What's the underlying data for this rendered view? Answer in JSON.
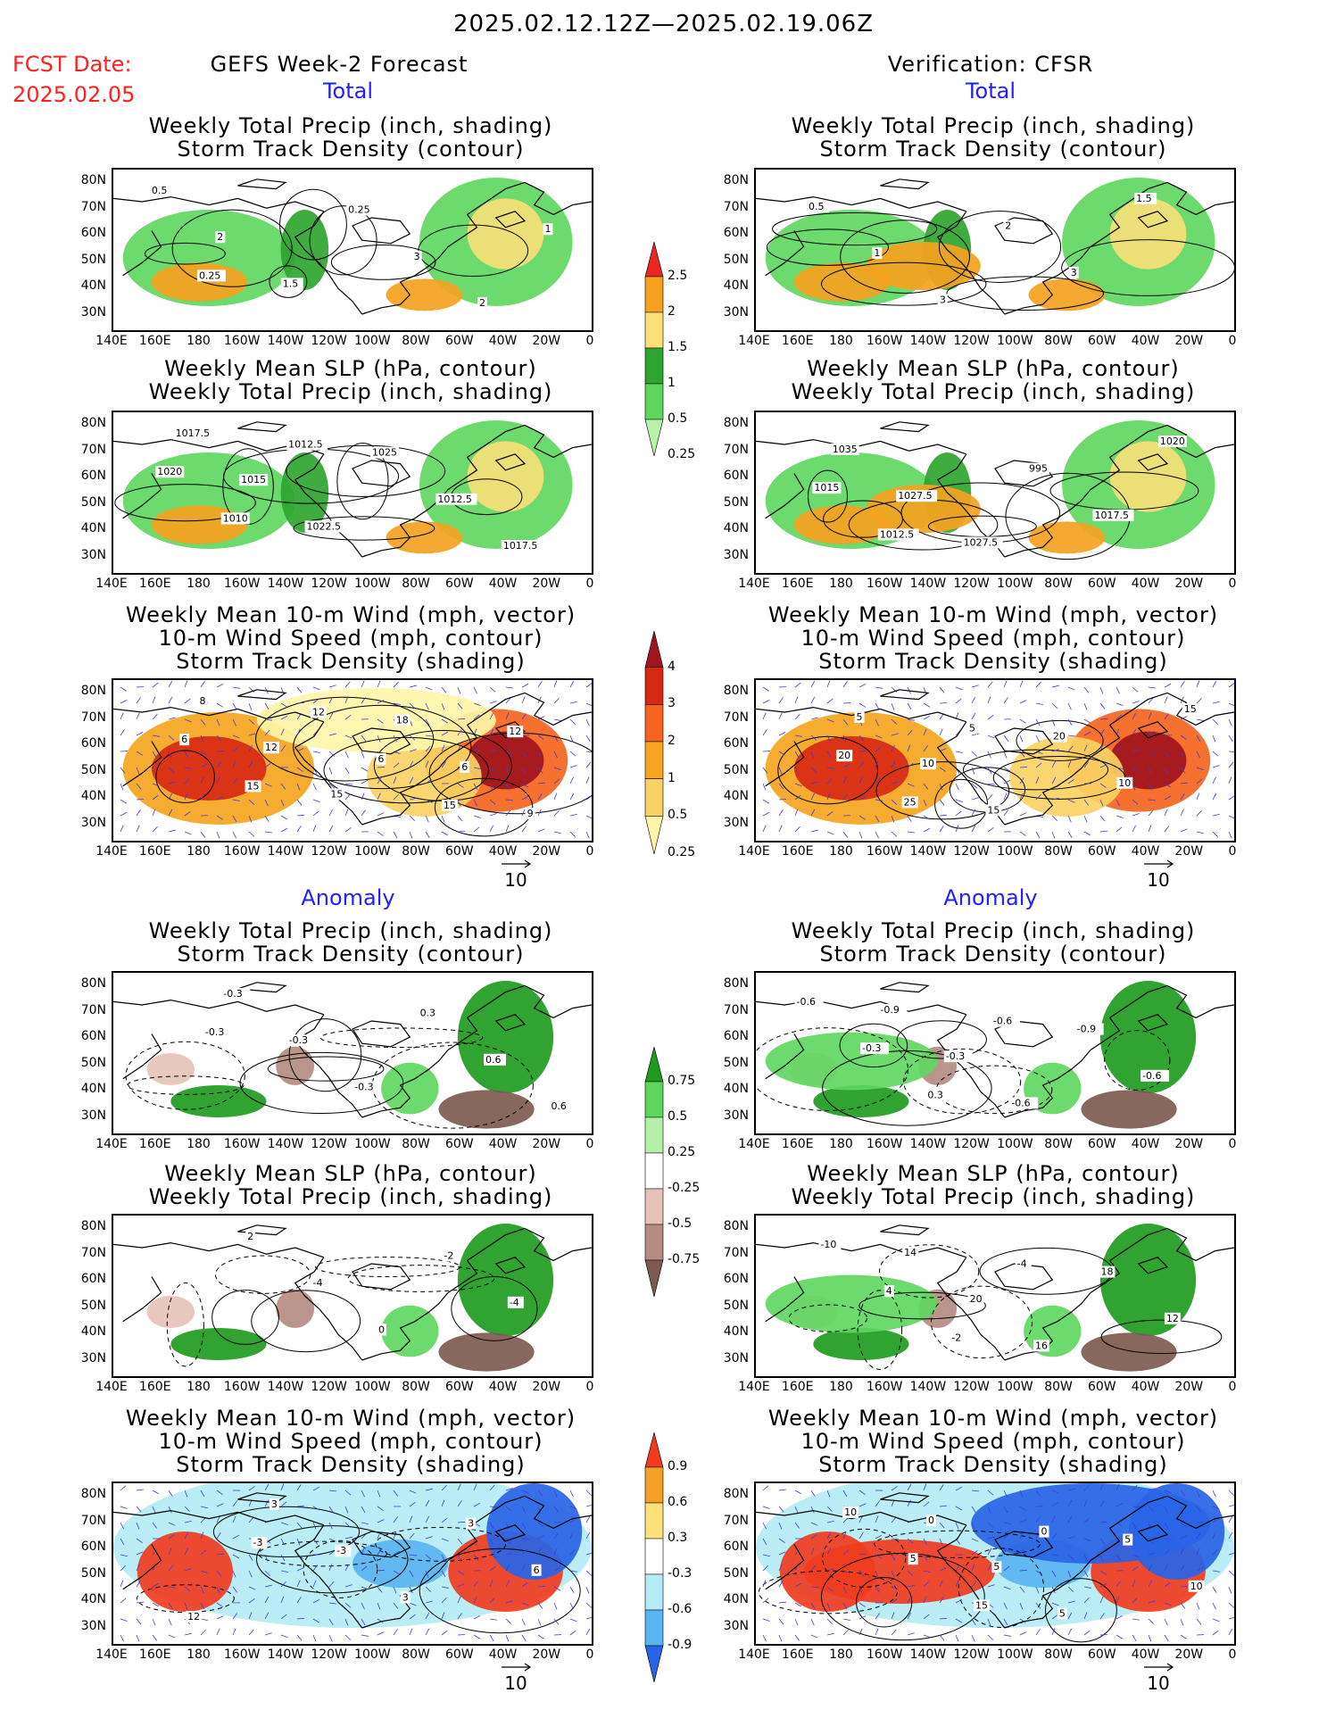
{
  "header": {
    "date_range": "2025.02.12.12Z—2025.02.19.06Z",
    "fcst_label": "FCST Date:",
    "fcst_date": "2025.02.05",
    "left_title": "GEFS Week-2 Forecast",
    "right_title": "Verification: CFSR",
    "total_label": "Total",
    "anomaly_label": "Anomaly"
  },
  "panel_titles": {
    "precip_storm": [
      "Weekly Total Precip (inch, shading)",
      "Storm Track Density (contour)"
    ],
    "slp_precip": [
      "Weekly Mean SLP (hPa, contour)",
      "Weekly Total Precip (inch, shading)"
    ],
    "wind_storm": [
      "Weekly Mean 10-m Wind (mph, vector)",
      "10-m Wind Speed (mph, contour)",
      "Storm Track Density (shading)"
    ]
  },
  "axes": {
    "lat_labels": [
      "80N",
      "70N",
      "60N",
      "50N",
      "40N",
      "30N"
    ],
    "lon_labels": [
      "140E",
      "160E",
      "180",
      "160W",
      "140W",
      "120W",
      "100W",
      "80W",
      "60W",
      "40W",
      "20W",
      "0"
    ]
  },
  "vector_ref": "10",
  "colorbars": {
    "total_precip": {
      "labels": [
        "2.5",
        "2",
        "1.5",
        "1",
        "0.5",
        "0.25"
      ],
      "colors": [
        "#e8281e",
        "#f5a21e",
        "#f9e07a",
        "#2ea52e",
        "#5fd75f",
        "#b6f2a8"
      ]
    },
    "total_storm": {
      "labels": [
        "4",
        "3",
        "2",
        "1",
        "0.5",
        "0.25"
      ],
      "colors": [
        "#a0141e",
        "#d72814",
        "#f5641e",
        "#f5a51e",
        "#f9d264",
        "#fff5a8"
      ]
    },
    "anom_precip": {
      "labels": [
        "0.75",
        "0.5",
        "0.25",
        "-0.25",
        "-0.5",
        "-0.75"
      ],
      "colors": [
        "#1e9b1e",
        "#5fd75f",
        "#b4f0a8",
        "#ffffff",
        "#e6c3b9",
        "#b48c82",
        "#7d5a50"
      ]
    },
    "anom_storm": {
      "labels": [
        "0.9",
        "0.6",
        "0.3",
        "-0.3",
        "-0.6",
        "-0.9"
      ],
      "colors": [
        "#f03c1e",
        "#f5a028",
        "#fae178",
        "#ffffff",
        "#b4ebf5",
        "#5ab4f0",
        "#2864e6"
      ]
    }
  },
  "contour_labels": {
    "r1_left": [
      "0.5",
      "2",
      "1.5",
      "0.25",
      "3",
      "2",
      "1",
      "0.25"
    ],
    "r1_right": [
      "0.5",
      "1",
      "3",
      "2",
      "3",
      "1.5"
    ],
    "r2_left": [
      "1017.5",
      "1015",
      "1022.5",
      "1025",
      "1012.5",
      "1017.5",
      "1020",
      "1010",
      "1012.5"
    ],
    "r2_right": [
      "1035",
      "1027.5",
      "1027.5",
      "995",
      "1017.5",
      "1020",
      "1015",
      "1012.5"
    ],
    "r3_left": [
      "8",
      "12",
      "15",
      "18",
      "6",
      "9",
      "6",
      "15",
      "12",
      "6",
      "15",
      "12"
    ],
    "r3_right": [
      "5",
      "10",
      "15",
      "20",
      "10",
      "15",
      "20",
      "25",
      "5"
    ],
    "a1_left": [
      "-0.3",
      "-0.3",
      "-0.3",
      "0.3",
      "0.6",
      "0.6",
      "-0.3"
    ],
    "a1_right": [
      "-0.9",
      "-0.3",
      "-0.6",
      "-0.9",
      "-0.6",
      "-0.6",
      "-0.3",
      "0.3",
      "-0.6"
    ],
    "a2_left": [
      "2",
      "-4",
      "0",
      "-2",
      "-4"
    ],
    "a2_right": [
      "14",
      "20",
      "16",
      "18",
      "12",
      "-10",
      "4",
      "-2",
      "-4"
    ],
    "a3_left": [
      "3",
      "-3",
      "3",
      "3",
      "6",
      "12",
      "-3"
    ],
    "a3_right": [
      "0",
      "5",
      "5",
      "5",
      "10",
      "10",
      "5",
      "15",
      "0"
    ]
  }
}
